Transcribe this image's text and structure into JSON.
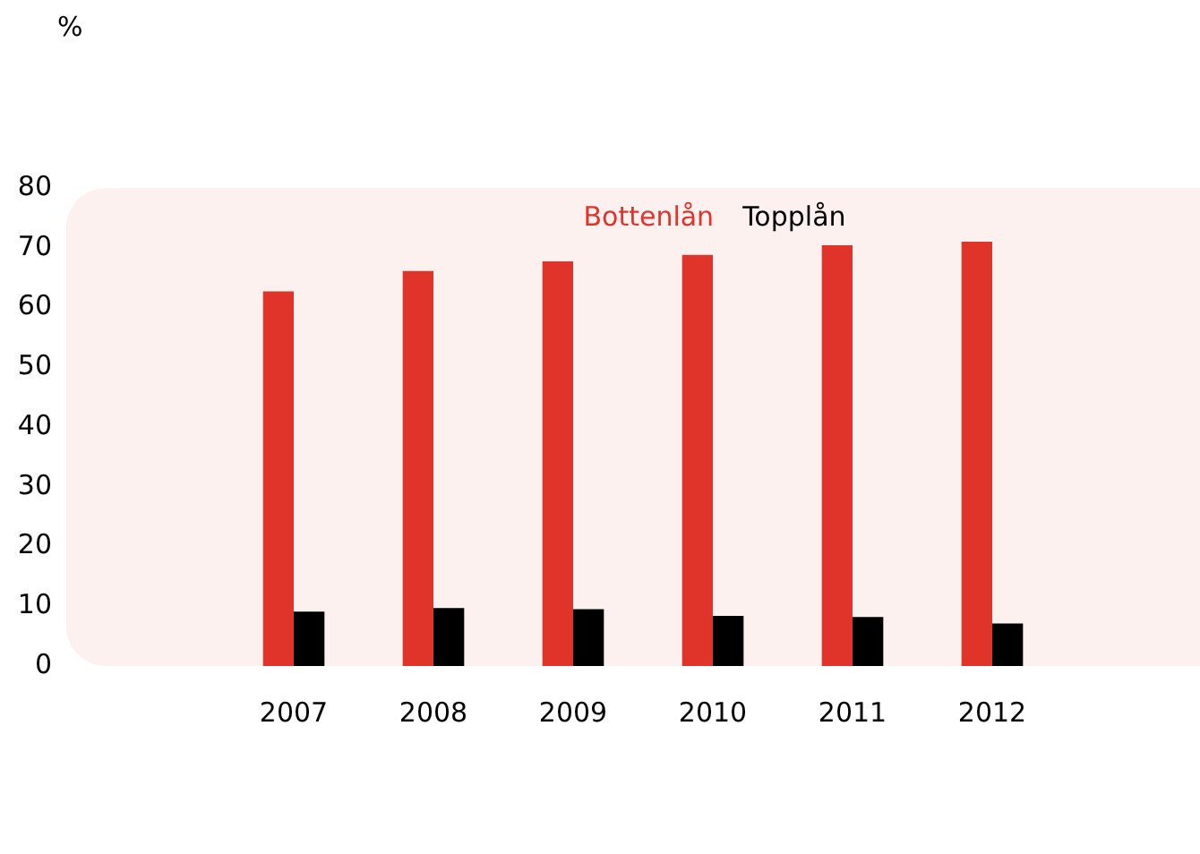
{
  "chart_data": {
    "type": "bar",
    "annotations": [
      "%"
    ],
    "categories": [
      "2007",
      "2008",
      "2009",
      "2010",
      "2011",
      "2012"
    ],
    "series": [
      {
        "name": "Bottenlån",
        "color": "#e0332a",
        "values": [
          62.7,
          66.1,
          67.7,
          68.8,
          70.4,
          71.0
        ]
      },
      {
        "name": "Topplån",
        "color": "#000000",
        "values": [
          9.1,
          9.7,
          9.5,
          8.4,
          8.2,
          7.1
        ]
      }
    ],
    "ylim": [
      0,
      80
    ],
    "yticks": [
      0,
      10,
      20,
      30,
      40,
      50,
      60,
      70,
      80
    ],
    "grid": false
  }
}
